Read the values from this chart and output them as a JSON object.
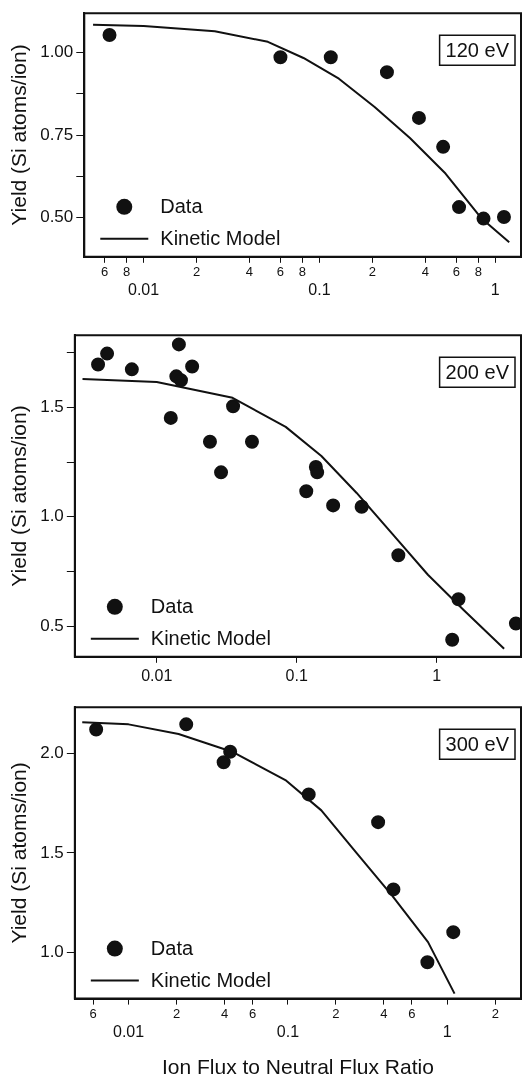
{
  "chart_data": [
    {
      "type": "scatter",
      "ylabel": "Yield (Si atoms/ion)",
      "legend": "bottom left",
      "log": "x",
      "grid": false,
      "annotations": [
        "120 eV",
        "6",
        "8",
        "2",
        "4",
        "6",
        "8",
        "2",
        "4",
        "6",
        "8"
      ],
      "xlim": [
        0.0046,
        1.4
      ],
      "ylim": [
        0.38,
        1.12
      ],
      "xticks": [
        {
          "value": 0.006,
          "label": null
        },
        {
          "value": 0.008,
          "label": null
        },
        0.01,
        {
          "value": 0.02,
          "label": null
        },
        {
          "value": 0.04,
          "label": null
        },
        {
          "value": 0.06,
          "label": null
        },
        {
          "value": 0.08,
          "label": null
        },
        0.1,
        {
          "value": 0.2,
          "label": null
        },
        {
          "value": 0.4,
          "label": null
        },
        {
          "value": 0.6,
          "label": null
        },
        {
          "value": 0.8,
          "label": null
        },
        1
      ],
      "yticks": [
        {
          "value": 0.5,
          "label": "0.50"
        },
        {
          "value": 0.625,
          "label": null
        },
        {
          "value": 0.75,
          "label": "0.75"
        },
        {
          "value": 0.875,
          "label": null
        },
        {
          "value": 1,
          "label": "1.00"
        }
      ],
      "series": [
        {
          "name": "Data",
          "type": "scatter",
          "marker": "circle",
          "color": "#111111",
          "x": [
            0.0064,
            0.06,
            0.116,
            0.242,
            0.368,
            0.505,
            0.622,
            0.857,
            1.12
          ],
          "values": [
            1.054,
            0.986,
            0.986,
            0.941,
            0.802,
            0.714,
            0.531,
            0.496,
            0.501
          ]
        },
        {
          "name": "Kinetic Model",
          "type": "line",
          "marker": "none",
          "color": "#111111",
          "x": [
            0.00516,
            0.01,
            0.0254,
            0.0509,
            0.0811,
            0.129,
            0.206,
            0.327,
            0.521,
            0.83,
            1.2
          ],
          "values": [
            1.085,
            1.081,
            1.065,
            1.033,
            0.984,
            0.921,
            0.835,
            0.741,
            0.633,
            0.498,
            0.424
          ]
        }
      ]
    },
    {
      "type": "scatter",
      "ylabel": "Yield (Si atoms/ion)",
      "annotations": [
        "200 eV"
      ],
      "legend": "bottom left",
      "log": "x",
      "grid": false,
      "xlim": [
        0.0026,
        4
      ],
      "ylim": [
        0.36,
        1.83
      ],
      "xticks": [
        0.01,
        0.1,
        1
      ],
      "yticks": [
        {
          "value": 0.5,
          "label": "0.5"
        },
        {
          "value": 0.75,
          "label": null
        },
        {
          "value": 1,
          "label": "1.0"
        },
        {
          "value": 1.25,
          "label": null
        },
        {
          "value": 1.5,
          "label": "1.5"
        },
        {
          "value": 1.75,
          "label": null
        }
      ],
      "series": [
        {
          "name": "Data",
          "type": "scatter",
          "marker": "circle",
          "color": "#111111",
          "x": [
            0.00381,
            0.00442,
            0.00664,
            0.0144,
            0.0179,
            0.0138,
            0.0149,
            0.0126,
            0.0351,
            0.024,
            0.0479,
            0.0288,
            0.137,
            0.14,
            0.117,
            0.182,
            0.291,
            0.532,
            1.43,
            1.29,
            3.68
          ],
          "values": [
            1.696,
            1.746,
            1.674,
            1.788,
            1.687,
            1.642,
            1.624,
            1.452,
            1.505,
            1.343,
            1.343,
            1.203,
            1.228,
            1.203,
            1.117,
            1.052,
            1.046,
            0.824,
            0.623,
            0.438,
            0.512
          ]
        },
        {
          "name": "Kinetic Model",
          "type": "line",
          "marker": "none",
          "color": "#111111",
          "x": [
            0.00295,
            0.01,
            0.0348,
            0.0834,
            0.15,
            0.268,
            0.482,
            0.865,
            1.55,
            3.03
          ],
          "values": [
            1.63,
            1.616,
            1.544,
            1.411,
            1.278,
            1.109,
            0.922,
            0.735,
            0.575,
            0.397
          ]
        }
      ]
    },
    {
      "type": "scatter",
      "xlabel": "Ion Flux to Neutral Flux Ratio",
      "ylabel": "Yield (Si atoms/ion)",
      "legend": "bottom left",
      "log": "x",
      "grid": false,
      "annotations": [
        "300 eV",
        "6",
        "2",
        "4",
        "6",
        "2",
        "4",
        "6",
        "2"
      ],
      "xlim": [
        0.0046,
        2.9
      ],
      "ylim": [
        0.77,
        2.23
      ],
      "xticks": [
        {
          "value": 0.006,
          "label": null
        },
        0.01,
        {
          "value": 0.02,
          "label": null
        },
        {
          "value": 0.04,
          "label": null
        },
        {
          "value": 0.06,
          "label": null
        },
        0.1,
        {
          "value": 0.2,
          "label": null
        },
        {
          "value": 0.4,
          "label": null
        },
        {
          "value": 0.6,
          "label": null
        },
        1,
        {
          "value": 2,
          "label": null
        }
      ],
      "yticks": [
        {
          "value": 1,
          "label": "1.0"
        },
        {
          "value": 1.5,
          "label": "1.5"
        },
        {
          "value": 2,
          "label": "2.0"
        }
      ],
      "series": [
        {
          "name": "Data",
          "type": "scatter",
          "marker": "circle",
          "color": "#111111",
          "x": [
            0.00626,
            0.023,
            0.0395,
            0.0434,
            0.135,
            0.368,
            0.459,
            1.09,
            0.75
          ],
          "values": [
            2.118,
            2.144,
            1.954,
            2.007,
            1.793,
            1.654,
            1.317,
            1.103,
            0.952
          ]
        },
        {
          "name": "Kinetic Model",
          "type": "line",
          "marker": "none",
          "color": "#111111",
          "x": [
            0.00512,
            0.01,
            0.0206,
            0.0446,
            0.0964,
            0.162,
            0.27,
            0.452,
            0.757,
            1.11
          ],
          "values": [
            2.155,
            2.144,
            2.096,
            2.007,
            1.865,
            1.713,
            1.499,
            1.285,
            1.053,
            0.795
          ]
        }
      ]
    }
  ]
}
